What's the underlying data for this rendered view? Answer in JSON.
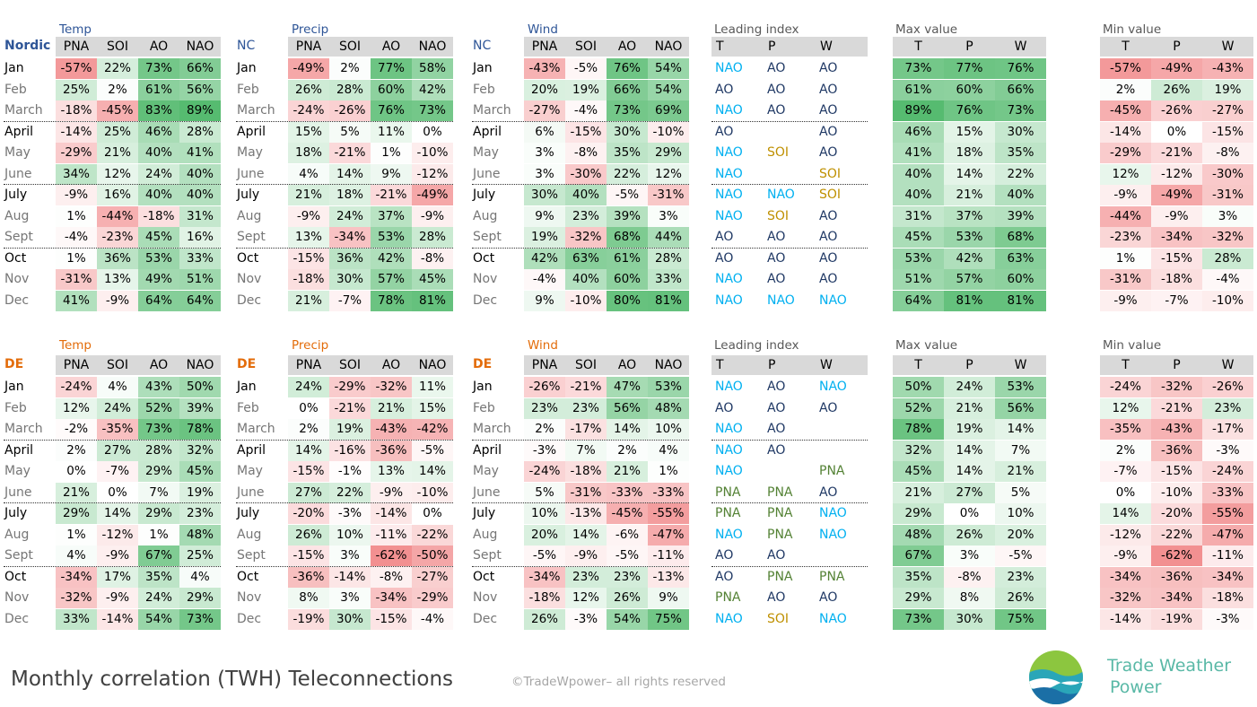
{
  "blocks": [
    {
      "region_label": "Nordic",
      "region_color": "#2e5597",
      "title_color": "#2e5597",
      "groups": [
        {
          "title": "Temp",
          "region": "Nordic",
          "headers": [
            "PNA",
            "SOI",
            "AO",
            "NAO"
          ],
          "rows": [
            [
              "Jan",
              "-57%",
              "22%",
              "73%",
              "66%"
            ],
            [
              "Feb",
              "25%",
              "2%",
              "61%",
              "56%"
            ],
            [
              "March",
              "-18%",
              "-45%",
              "83%",
              "89%"
            ],
            [
              "April",
              "-14%",
              "25%",
              "46%",
              "28%"
            ],
            [
              "May",
              "-29%",
              "21%",
              "40%",
              "41%"
            ],
            [
              "June",
              "34%",
              "12%",
              "24%",
              "40%"
            ],
            [
              "July",
              "-9%",
              "16%",
              "40%",
              "40%"
            ],
            [
              "Aug",
              "1%",
              "-44%",
              "-18%",
              "31%"
            ],
            [
              "Sept",
              "-4%",
              "-23%",
              "45%",
              "16%"
            ],
            [
              "Oct",
              "1%",
              "36%",
              "53%",
              "33%"
            ],
            [
              "Nov",
              "-31%",
              "13%",
              "49%",
              "51%"
            ],
            [
              "Dec",
              "41%",
              "-9%",
              "64%",
              "64%"
            ]
          ]
        },
        {
          "title": "Precip",
          "region": "NC",
          "headers": [
            "PNA",
            "SOI",
            "AO",
            "NAO"
          ],
          "rows": [
            [
              "Jan",
              "-49%",
              "2%",
              "77%",
              "58%"
            ],
            [
              "Feb",
              "26%",
              "28%",
              "60%",
              "42%"
            ],
            [
              "March",
              "-24%",
              "-26%",
              "76%",
              "73%"
            ],
            [
              "April",
              "15%",
              "5%",
              "11%",
              "0%"
            ],
            [
              "May",
              "18%",
              "-21%",
              "1%",
              "-10%"
            ],
            [
              "June",
              "4%",
              "14%",
              "9%",
              "-12%"
            ],
            [
              "July",
              "21%",
              "18%",
              "-21%",
              "-49%"
            ],
            [
              "Aug",
              "-9%",
              "24%",
              "37%",
              "-9%"
            ],
            [
              "Sept",
              "13%",
              "-34%",
              "53%",
              "28%"
            ],
            [
              "Oct",
              "-15%",
              "36%",
              "42%",
              "-8%"
            ],
            [
              "Nov",
              "-18%",
              "30%",
              "57%",
              "45%"
            ],
            [
              "Dec",
              "21%",
              "-7%",
              "78%",
              "81%"
            ]
          ]
        },
        {
          "title": "Wind",
          "region": "NC",
          "headers": [
            "PNA",
            "SOI",
            "AO",
            "NAO"
          ],
          "rows": [
            [
              "Jan",
              "-43%",
              "-5%",
              "76%",
              "54%"
            ],
            [
              "Feb",
              "20%",
              "19%",
              "66%",
              "54%"
            ],
            [
              "March",
              "-27%",
              "-4%",
              "73%",
              "69%"
            ],
            [
              "April",
              "6%",
              "-15%",
              "30%",
              "-10%"
            ],
            [
              "May",
              "3%",
              "-8%",
              "35%",
              "29%"
            ],
            [
              "June",
              "3%",
              "-30%",
              "22%",
              "12%"
            ],
            [
              "July",
              "30%",
              "40%",
              "-5%",
              "-31%"
            ],
            [
              "Aug",
              "9%",
              "23%",
              "39%",
              "3%"
            ],
            [
              "Sept",
              "19%",
              "-32%",
              "68%",
              "44%"
            ],
            [
              "Oct",
              "42%",
              "63%",
              "61%",
              "28%"
            ],
            [
              "Nov",
              "-4%",
              "40%",
              "60%",
              "33%"
            ],
            [
              "Dec",
              "9%",
              "-10%",
              "80%",
              "81%"
            ]
          ]
        }
      ],
      "leading": {
        "title": "Leading index",
        "headers": [
          "T",
          "P",
          "W"
        ],
        "rows": [
          [
            "NAO",
            "AO",
            "AO"
          ],
          [
            "AO",
            "AO",
            "AO"
          ],
          [
            "NAO",
            "AO",
            "AO"
          ],
          [
            "AO",
            "",
            "AO"
          ],
          [
            "NAO",
            "SOI",
            "AO"
          ],
          [
            "NAO",
            "",
            "SOI"
          ],
          [
            "NAO",
            "NAO",
            "SOI"
          ],
          [
            "NAO",
            "SOI",
            "AO"
          ],
          [
            "AO",
            "AO",
            "AO"
          ],
          [
            "AO",
            "AO",
            "AO"
          ],
          [
            "NAO",
            "AO",
            "AO"
          ],
          [
            "NAO",
            "NAO",
            "NAO"
          ]
        ]
      },
      "max": {
        "title": "Max value",
        "headers": [
          "T",
          "P",
          "W"
        ],
        "rows": [
          [
            "73%",
            "77%",
            "76%"
          ],
          [
            "61%",
            "60%",
            "66%"
          ],
          [
            "89%",
            "76%",
            "73%"
          ],
          [
            "46%",
            "15%",
            "30%"
          ],
          [
            "41%",
            "18%",
            "35%"
          ],
          [
            "40%",
            "14%",
            "22%"
          ],
          [
            "40%",
            "21%",
            "40%"
          ],
          [
            "31%",
            "37%",
            "39%"
          ],
          [
            "45%",
            "53%",
            "68%"
          ],
          [
            "53%",
            "42%",
            "63%"
          ],
          [
            "51%",
            "57%",
            "60%"
          ],
          [
            "64%",
            "81%",
            "81%"
          ]
        ]
      },
      "min": {
        "title": "Min value",
        "headers": [
          "T",
          "P",
          "W"
        ],
        "rows": [
          [
            "-57%",
            "-49%",
            "-43%"
          ],
          [
            "2%",
            "26%",
            "19%"
          ],
          [
            "-45%",
            "-26%",
            "-27%"
          ],
          [
            "-14%",
            "0%",
            "-15%"
          ],
          [
            "-29%",
            "-21%",
            "-8%"
          ],
          [
            "12%",
            "-12%",
            "-30%"
          ],
          [
            "-9%",
            "-49%",
            "-31%"
          ],
          [
            "-44%",
            "-9%",
            "3%"
          ],
          [
            "-23%",
            "-34%",
            "-32%"
          ],
          [
            "1%",
            "-15%",
            "28%"
          ],
          [
            "-31%",
            "-18%",
            "-4%"
          ],
          [
            "-9%",
            "-7%",
            "-10%"
          ]
        ]
      }
    },
    {
      "region_label": "DE",
      "region_color": "#e36c0a",
      "title_color": "#e36c0a",
      "groups": [
        {
          "title": "Temp",
          "region": "DE",
          "headers": [
            "PNA",
            "SOI",
            "AO",
            "NAO"
          ],
          "rows": [
            [
              "Jan",
              "-24%",
              "4%",
              "43%",
              "50%"
            ],
            [
              "Feb",
              "12%",
              "24%",
              "52%",
              "39%"
            ],
            [
              "March",
              "-2%",
              "-35%",
              "73%",
              "78%"
            ],
            [
              "April",
              "2%",
              "27%",
              "28%",
              "32%"
            ],
            [
              "May",
              "0%",
              "-7%",
              "29%",
              "45%"
            ],
            [
              "June",
              "21%",
              "0%",
              "7%",
              "19%"
            ],
            [
              "July",
              "29%",
              "14%",
              "29%",
              "23%"
            ],
            [
              "Aug",
              "1%",
              "-12%",
              "1%",
              "48%"
            ],
            [
              "Sept",
              "4%",
              "-9%",
              "67%",
              "25%"
            ],
            [
              "Oct",
              "-34%",
              "17%",
              "35%",
              "4%"
            ],
            [
              "Nov",
              "-32%",
              "-9%",
              "24%",
              "29%"
            ],
            [
              "Dec",
              "33%",
              "-14%",
              "54%",
              "73%"
            ]
          ]
        },
        {
          "title": "Precip",
          "region": "DE",
          "headers": [
            "PNA",
            "SOI",
            "AO",
            "NAO"
          ],
          "rows": [
            [
              "Jan",
              "24%",
              "-29%",
              "-32%",
              "11%"
            ],
            [
              "Feb",
              "0%",
              "-21%",
              "21%",
              "15%"
            ],
            [
              "March",
              "2%",
              "19%",
              "-43%",
              "-42%"
            ],
            [
              "April",
              "14%",
              "-16%",
              "-36%",
              "-5%"
            ],
            [
              "May",
              "-15%",
              "-1%",
              "13%",
              "14%"
            ],
            [
              "June",
              "27%",
              "22%",
              "-9%",
              "-10%"
            ],
            [
              "July",
              "-20%",
              "-3%",
              "-14%",
              "0%"
            ],
            [
              "Aug",
              "26%",
              "10%",
              "-11%",
              "-22%"
            ],
            [
              "Sept",
              "-15%",
              "3%",
              "-62%",
              "-50%"
            ],
            [
              "Oct",
              "-36%",
              "-14%",
              "-8%",
              "-27%"
            ],
            [
              "Nov",
              "8%",
              "3%",
              "-34%",
              "-29%"
            ],
            [
              "Dec",
              "-19%",
              "30%",
              "-15%",
              "-4%"
            ]
          ]
        },
        {
          "title": "Wind",
          "region": "DE",
          "headers": [
            "PNA",
            "SOI",
            "AO",
            "NAO"
          ],
          "rows": [
            [
              "Jan",
              "-26%",
              "-21%",
              "47%",
              "53%"
            ],
            [
              "Feb",
              "23%",
              "23%",
              "56%",
              "48%"
            ],
            [
              "March",
              "2%",
              "-17%",
              "14%",
              "10%"
            ],
            [
              "April",
              "-3%",
              "7%",
              "2%",
              "4%"
            ],
            [
              "May",
              "-24%",
              "-18%",
              "21%",
              "1%"
            ],
            [
              "June",
              "5%",
              "-31%",
              "-33%",
              "-33%"
            ],
            [
              "July",
              "10%",
              "-13%",
              "-45%",
              "-55%"
            ],
            [
              "Aug",
              "20%",
              "14%",
              "-6%",
              "-47%"
            ],
            [
              "Sept",
              "-5%",
              "-9%",
              "-5%",
              "-11%"
            ],
            [
              "Oct",
              "-34%",
              "23%",
              "23%",
              "-13%"
            ],
            [
              "Nov",
              "-18%",
              "12%",
              "26%",
              "9%"
            ],
            [
              "Dec",
              "26%",
              "-3%",
              "54%",
              "75%"
            ]
          ]
        }
      ],
      "leading": {
        "title": "Leading index",
        "headers": [
          "T",
          "P",
          "W"
        ],
        "rows": [
          [
            "NAO",
            "AO",
            "NAO"
          ],
          [
            "AO",
            "AO",
            "AO"
          ],
          [
            "NAO",
            "AO",
            ""
          ],
          [
            "NAO",
            "AO",
            ""
          ],
          [
            "NAO",
            "",
            "PNA"
          ],
          [
            "PNA",
            "PNA",
            "AO"
          ],
          [
            "PNA",
            "PNA",
            "NAO"
          ],
          [
            "NAO",
            "PNA",
            "NAO"
          ],
          [
            "AO",
            "AO",
            ""
          ],
          [
            "AO",
            "PNA",
            "PNA"
          ],
          [
            "PNA",
            "AO",
            "AO"
          ],
          [
            "NAO",
            "SOI",
            "NAO"
          ]
        ]
      },
      "max": {
        "title": "Max value",
        "headers": [
          "T",
          "P",
          "W"
        ],
        "rows": [
          [
            "50%",
            "24%",
            "53%"
          ],
          [
            "52%",
            "21%",
            "56%"
          ],
          [
            "78%",
            "19%",
            "14%"
          ],
          [
            "32%",
            "14%",
            "7%"
          ],
          [
            "45%",
            "14%",
            "21%"
          ],
          [
            "21%",
            "27%",
            "5%"
          ],
          [
            "29%",
            "0%",
            "10%"
          ],
          [
            "48%",
            "26%",
            "20%"
          ],
          [
            "67%",
            "3%",
            "-5%"
          ],
          [
            "35%",
            "-8%",
            "23%"
          ],
          [
            "29%",
            "8%",
            "26%"
          ],
          [
            "73%",
            "30%",
            "75%"
          ]
        ]
      },
      "min": {
        "title": "Min value",
        "headers": [
          "T",
          "P",
          "W"
        ],
        "rows": [
          [
            "-24%",
            "-32%",
            "-26%"
          ],
          [
            "12%",
            "-21%",
            "23%"
          ],
          [
            "-35%",
            "-43%",
            "-17%"
          ],
          [
            "2%",
            "-36%",
            "-3%"
          ],
          [
            "-7%",
            "-15%",
            "-24%"
          ],
          [
            "0%",
            "-10%",
            "-33%"
          ],
          [
            "14%",
            "-20%",
            "-55%"
          ],
          [
            "-12%",
            "-22%",
            "-47%"
          ],
          [
            "-9%",
            "-62%",
            "-11%"
          ],
          [
            "-34%",
            "-36%",
            "-34%"
          ],
          [
            "-32%",
            "-34%",
            "-18%"
          ],
          [
            "-14%",
            "-19%",
            "-3%"
          ]
        ]
      }
    }
  ],
  "index_colors": {
    "NAO": "#00b0f0",
    "AO": "#1f3864",
    "SOI": "#bf9000",
    "PNA": "#548235"
  },
  "footer_title": "Monthly correlation (TWH) Teleconnections",
  "copyright": "©TradeWpower– all rights reserved",
  "brand_line1": "Trade Weather",
  "brand_line2": "Power",
  "brand_color": "#59b8a6"
}
